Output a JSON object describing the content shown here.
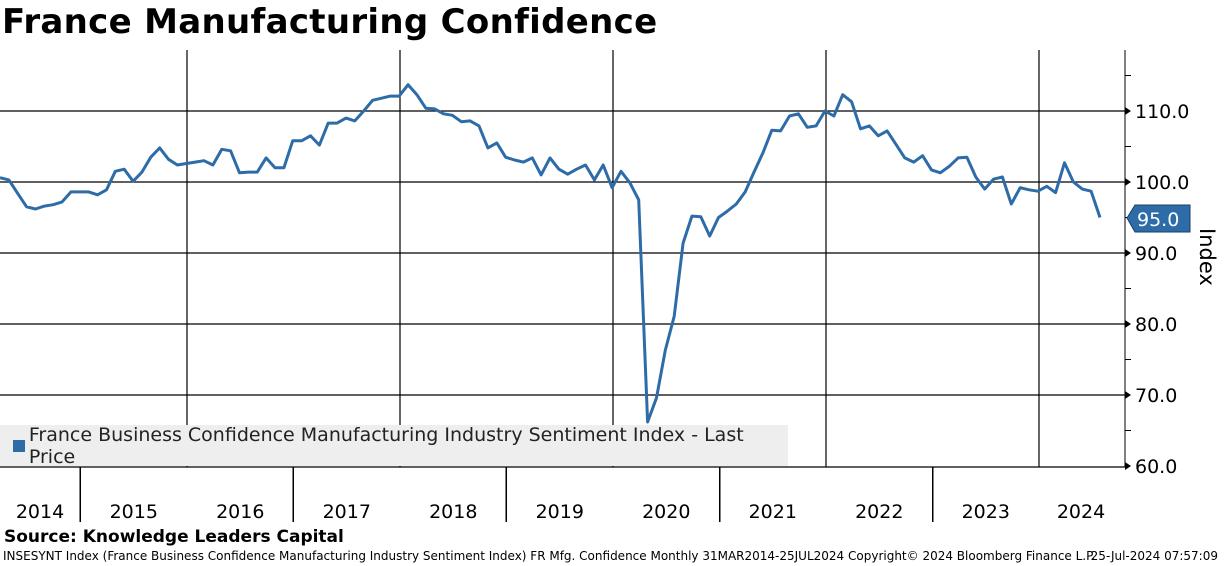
{
  "title": "France Manufacturing Confidence",
  "source": "Source: Knowledge Leaders Capital",
  "footer": "INSESYNT Index (France Business Confidence Manufacturing Industry Sentiment Index) FR Mfg. Confidence  Monthly 31MAR2014-25JUL2024  Copyright© 2024 Bloomberg Finance L.P.",
  "footer_timestamp": "25-Jul-2024 07:57:09",
  "colors": {
    "line": "#2e6ca8",
    "grid": "#000000",
    "legend_bg": "#eeeeee"
  },
  "chart_data": {
    "type": "line",
    "title": "France Manufacturing Confidence",
    "ylabel": "Index",
    "xlabel": "",
    "ylim": [
      60,
      118
    ],
    "yticks": [
      "60.0",
      "70.0",
      "80.0",
      "90.0",
      "100.0",
      "110.0"
    ],
    "ytick_values": [
      60,
      70,
      80,
      90,
      100,
      110
    ],
    "xtick_labels": [
      "2014",
      "2015",
      "2016",
      "2017",
      "2018",
      "2019",
      "2020",
      "2021",
      "2022",
      "2023",
      "2024"
    ],
    "grid": true,
    "legend": {
      "position": "bottom-left",
      "entries": [
        "France Business Confidence Manufacturing Industry Sentiment Index - Last Price"
      ]
    },
    "last_price_label": "95.0",
    "series": [
      {
        "name": "France Business Confidence Manufacturing Industry Sentiment Index - Last Price",
        "start": "2014-03",
        "frequency": "monthly",
        "values": [
          100.6,
          100.3,
          98.4,
          96.5,
          96.2,
          96.6,
          96.8,
          97.2,
          98.6,
          98.6,
          98.6,
          98.2,
          98.9,
          101.5,
          101.8,
          100.1,
          101.4,
          103.5,
          104.8,
          103.2,
          102.4,
          102.6,
          102.8,
          103.0,
          102.4,
          104.6,
          104.4,
          101.3,
          101.4,
          101.4,
          103.4,
          102.0,
          102.0,
          105.8,
          105.8,
          106.5,
          105.2,
          108.3,
          108.3,
          109.0,
          108.6,
          110.0,
          111.5,
          111.8,
          112.1,
          112.1,
          113.7,
          112.3,
          110.4,
          110.3,
          109.6,
          109.4,
          108.5,
          108.6,
          107.9,
          104.8,
          105.5,
          103.5,
          103.1,
          102.8,
          103.4,
          101.0,
          103.4,
          101.8,
          101.1,
          101.8,
          102.4,
          100.3,
          102.4,
          99.2,
          101.5,
          99.9,
          97.5,
          66.2,
          69.6,
          76.3,
          81.1,
          91.4,
          95.2,
          95.1,
          92.4,
          95.0,
          95.9,
          96.9,
          98.6,
          101.4,
          104.1,
          107.3,
          107.2,
          109.3,
          109.6,
          107.7,
          107.9,
          110.0,
          109.3,
          112.3,
          111.3,
          107.5,
          107.9,
          106.5,
          107.2,
          105.3,
          103.4,
          102.8,
          103.7,
          101.7,
          101.3,
          102.2,
          103.4,
          103.5,
          100.7,
          99.0,
          100.4,
          100.7,
          96.9,
          99.2,
          98.9,
          98.7,
          99.4,
          98.5,
          102.7,
          100.0,
          99.0,
          98.7,
          95.0
        ]
      }
    ]
  }
}
